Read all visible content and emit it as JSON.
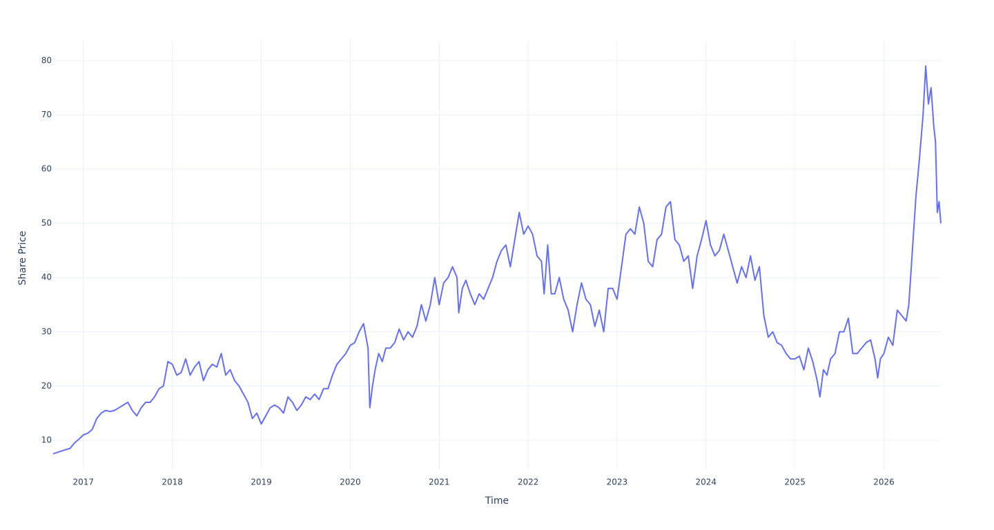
{
  "chart_data": {
    "type": "line",
    "x_label": "Time",
    "y_label": "Share Price",
    "xlim": [
      2016.66,
      2026.64
    ],
    "ylim": [
      4.65,
      83.8
    ],
    "xticks": [
      2017,
      2018,
      2019,
      2020,
      2021,
      2022,
      2023,
      2024,
      2025,
      2026
    ],
    "yticks": [
      10,
      20,
      30,
      40,
      50,
      60,
      70,
      80
    ],
    "grid": true,
    "series": [
      {
        "name": "Share Price",
        "color": "#636efa",
        "x": [
          2016.66,
          2016.75,
          2016.85,
          2016.9,
          2016.95,
          2017.0,
          2017.05,
          2017.1,
          2017.15,
          2017.2,
          2017.25,
          2017.3,
          2017.35,
          2017.4,
          2017.45,
          2017.5,
          2017.55,
          2017.6,
          2017.65,
          2017.7,
          2017.75,
          2017.8,
          2017.85,
          2017.9,
          2017.95,
          2018.0,
          2018.05,
          2018.1,
          2018.15,
          2018.2,
          2018.25,
          2018.3,
          2018.35,
          2018.4,
          2018.45,
          2018.5,
          2018.55,
          2018.6,
          2018.65,
          2018.7,
          2018.75,
          2018.8,
          2018.85,
          2018.9,
          2018.95,
          2019.0,
          2019.05,
          2019.1,
          2019.15,
          2019.2,
          2019.25,
          2019.3,
          2019.35,
          2019.4,
          2019.45,
          2019.5,
          2019.55,
          2019.6,
          2019.65,
          2019.7,
          2019.75,
          2019.8,
          2019.85,
          2019.9,
          2019.95,
          2020.0,
          2020.05,
          2020.1,
          2020.15,
          2020.2,
          2020.22,
          2020.25,
          2020.28,
          2020.32,
          2020.36,
          2020.4,
          2020.45,
          2020.5,
          2020.55,
          2020.6,
          2020.65,
          2020.7,
          2020.75,
          2020.8,
          2020.85,
          2020.9,
          2020.95,
          2021.0,
          2021.05,
          2021.1,
          2021.15,
          2021.2,
          2021.22,
          2021.26,
          2021.3,
          2021.35,
          2021.4,
          2021.45,
          2021.5,
          2021.55,
          2021.6,
          2021.65,
          2021.7,
          2021.75,
          2021.8,
          2021.85,
          2021.9,
          2021.95,
          2022.0,
          2022.05,
          2022.1,
          2022.15,
          2022.18,
          2022.22,
          2022.26,
          2022.3,
          2022.35,
          2022.4,
          2022.45,
          2022.5,
          2022.55,
          2022.6,
          2022.65,
          2022.7,
          2022.75,
          2022.8,
          2022.85,
          2022.9,
          2022.95,
          2023.0,
          2023.05,
          2023.1,
          2023.15,
          2023.2,
          2023.25,
          2023.3,
          2023.35,
          2023.4,
          2023.45,
          2023.5,
          2023.55,
          2023.6,
          2023.65,
          2023.7,
          2023.75,
          2023.8,
          2023.85,
          2023.9,
          2023.95,
          2024.0,
          2024.05,
          2024.1,
          2024.15,
          2024.2,
          2024.25,
          2024.3,
          2024.35,
          2024.4,
          2024.45,
          2024.5,
          2024.55,
          2024.6,
          2024.65,
          2024.7,
          2024.75,
          2024.8,
          2024.85,
          2024.9,
          2024.95,
          2025.0,
          2025.05,
          2025.1,
          2025.15,
          2025.2,
          2025.25,
          2025.28,
          2025.32,
          2025.36,
          2025.4,
          2025.45,
          2025.5,
          2025.55,
          2025.6,
          2025.65,
          2025.7,
          2025.75,
          2025.8,
          2025.85,
          2025.9,
          2025.93,
          2025.96,
          2026.0,
          2026.05,
          2026.1,
          2026.15,
          2026.2,
          2026.25,
          2026.28,
          2026.32,
          2026.36,
          2026.4,
          2026.44,
          2026.47,
          2026.5,
          2026.53,
          2026.56,
          2026.58,
          2026.6,
          2026.62,
          2026.64
        ],
        "values": [
          7.5,
          8,
          8.5,
          9.5,
          10.2,
          11,
          11.3,
          12,
          14,
          15,
          15.5,
          15.3,
          15.5,
          16,
          16.5,
          17,
          15.5,
          14.5,
          16,
          17,
          17,
          18,
          19.5,
          20,
          24.5,
          24,
          22,
          22.5,
          25,
          22,
          23.5,
          24.5,
          21,
          23,
          24,
          23.5,
          26,
          22,
          23,
          21,
          20,
          18.5,
          17,
          14,
          15,
          13,
          14.5,
          16,
          16.5,
          16,
          15,
          18,
          17,
          15.5,
          16.5,
          18,
          17.5,
          18.5,
          17.5,
          19.5,
          19.5,
          22,
          24,
          25,
          26,
          27.5,
          28,
          30,
          31.5,
          27,
          16,
          20,
          23,
          26,
          24.5,
          27,
          27,
          28,
          30.5,
          28.5,
          30,
          29,
          31,
          35,
          32,
          35,
          40,
          35,
          39,
          40,
          42,
          40,
          33.5,
          38,
          39.5,
          37,
          35,
          37,
          36,
          38,
          40,
          43,
          45,
          46,
          42,
          47,
          52,
          48,
          49.5,
          48,
          44,
          43,
          37,
          46,
          37,
          37,
          40,
          36,
          34,
          30,
          35,
          39,
          36,
          35,
          31,
          34,
          30,
          38,
          38,
          36,
          42,
          48,
          49,
          48,
          53,
          50,
          43,
          42,
          47,
          48,
          53,
          54,
          47,
          46,
          43,
          44,
          38,
          44,
          47,
          50.5,
          46,
          44,
          45,
          48,
          45,
          42,
          39,
          42,
          40,
          44,
          39.5,
          42,
          33,
          29,
          30,
          28,
          27.5,
          26,
          25,
          25,
          25.5,
          23,
          27,
          24.5,
          21,
          18,
          23,
          22,
          25,
          26,
          30,
          30,
          32.5,
          26,
          26,
          27,
          28,
          28.5,
          25,
          21.5,
          25,
          26,
          29,
          27.5,
          34,
          33,
          32,
          35,
          45,
          55,
          62,
          70,
          79,
          72,
          75,
          68,
          65,
          52,
          54,
          50
        ]
      }
    ]
  }
}
